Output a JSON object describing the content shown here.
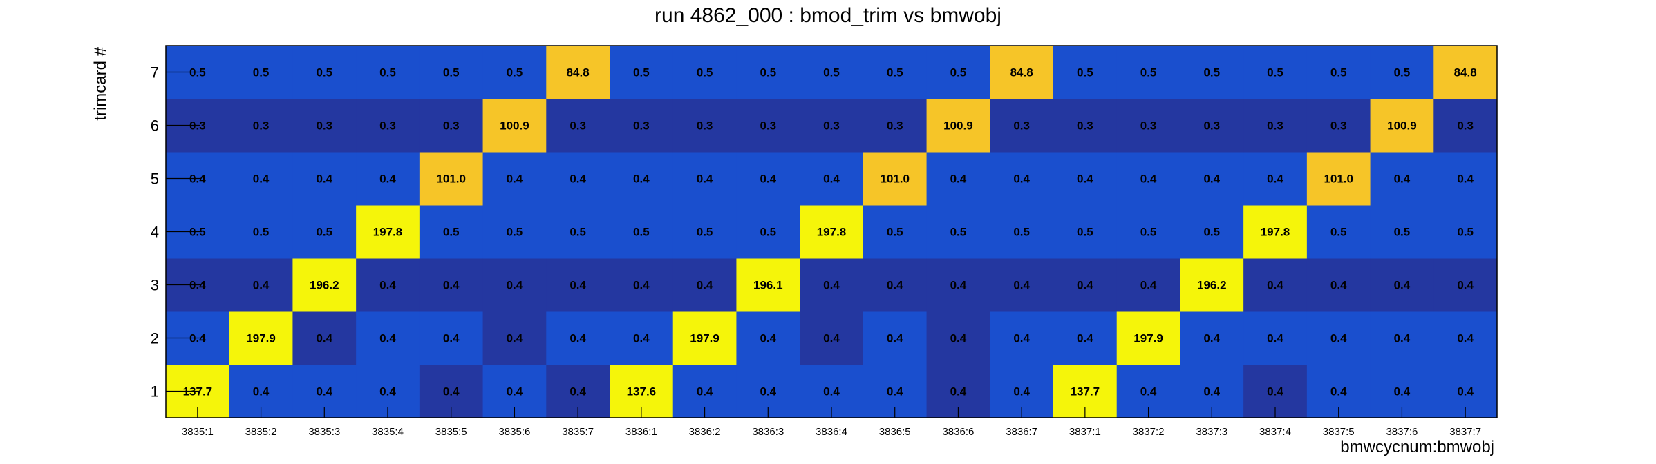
{
  "chart_data": {
    "type": "heatmap",
    "title": "run 4862_000 : bmod_trim vs bmwobj",
    "xlabel": "bmwcycnum:bmwobj",
    "ylabel": "trimcard #",
    "x_categories": [
      "3835:1",
      "3835:2",
      "3835:3",
      "3835:4",
      "3835:5",
      "3835:6",
      "3835:7",
      "3836:1",
      "3836:2",
      "3836:3",
      "3836:4",
      "3836:5",
      "3836:6",
      "3836:7",
      "3837:1",
      "3837:2",
      "3837:3",
      "3837:4",
      "3837:5",
      "3837:6",
      "3837:7"
    ],
    "y_categories": [
      "1",
      "2",
      "3",
      "4",
      "5",
      "6",
      "7"
    ],
    "values": [
      [
        137.7,
        0.4,
        0.4,
        0.4,
        0.4,
        0.4,
        0.4,
        137.6,
        0.4,
        0.4,
        0.4,
        0.4,
        0.4,
        0.4,
        137.7,
        0.4,
        0.4,
        0.4,
        0.4,
        0.4,
        0.4
      ],
      [
        0.4,
        197.9,
        0.4,
        0.4,
        0.4,
        0.4,
        0.4,
        0.4,
        197.9,
        0.4,
        0.4,
        0.4,
        0.4,
        0.4,
        0.4,
        197.9,
        0.4,
        0.4,
        0.4,
        0.4,
        0.4
      ],
      [
        0.4,
        0.4,
        196.2,
        0.4,
        0.4,
        0.4,
        0.4,
        0.4,
        0.4,
        196.1,
        0.4,
        0.4,
        0.4,
        0.4,
        0.4,
        0.4,
        196.2,
        0.4,
        0.4,
        0.4,
        0.4
      ],
      [
        0.5,
        0.5,
        0.5,
        197.8,
        0.5,
        0.5,
        0.5,
        0.5,
        0.5,
        0.5,
        197.8,
        0.5,
        0.5,
        0.5,
        0.5,
        0.5,
        0.5,
        197.8,
        0.5,
        0.5,
        0.5
      ],
      [
        0.4,
        0.4,
        0.4,
        0.4,
        101.0,
        0.4,
        0.4,
        0.4,
        0.4,
        0.4,
        0.4,
        101.0,
        0.4,
        0.4,
        0.4,
        0.4,
        0.4,
        0.4,
        101.0,
        0.4,
        0.4
      ],
      [
        0.3,
        0.3,
        0.3,
        0.3,
        0.3,
        100.9,
        0.3,
        0.3,
        0.3,
        0.3,
        0.3,
        0.3,
        100.9,
        0.3,
        0.3,
        0.3,
        0.3,
        0.3,
        0.3,
        100.9,
        0.3
      ],
      [
        0.5,
        0.5,
        0.5,
        0.5,
        0.5,
        0.5,
        84.8,
        0.5,
        0.5,
        0.5,
        0.5,
        0.5,
        0.5,
        84.8,
        0.5,
        0.5,
        0.5,
        0.5,
        0.5,
        0.5,
        84.8
      ]
    ],
    "value_format": "one decimal",
    "colors": {
      "low": "#1a4fce",
      "low_dark": "#2437a0",
      "mid": "#f6c528",
      "high": "#f5f50a"
    },
    "grid": false,
    "legend": "none"
  }
}
